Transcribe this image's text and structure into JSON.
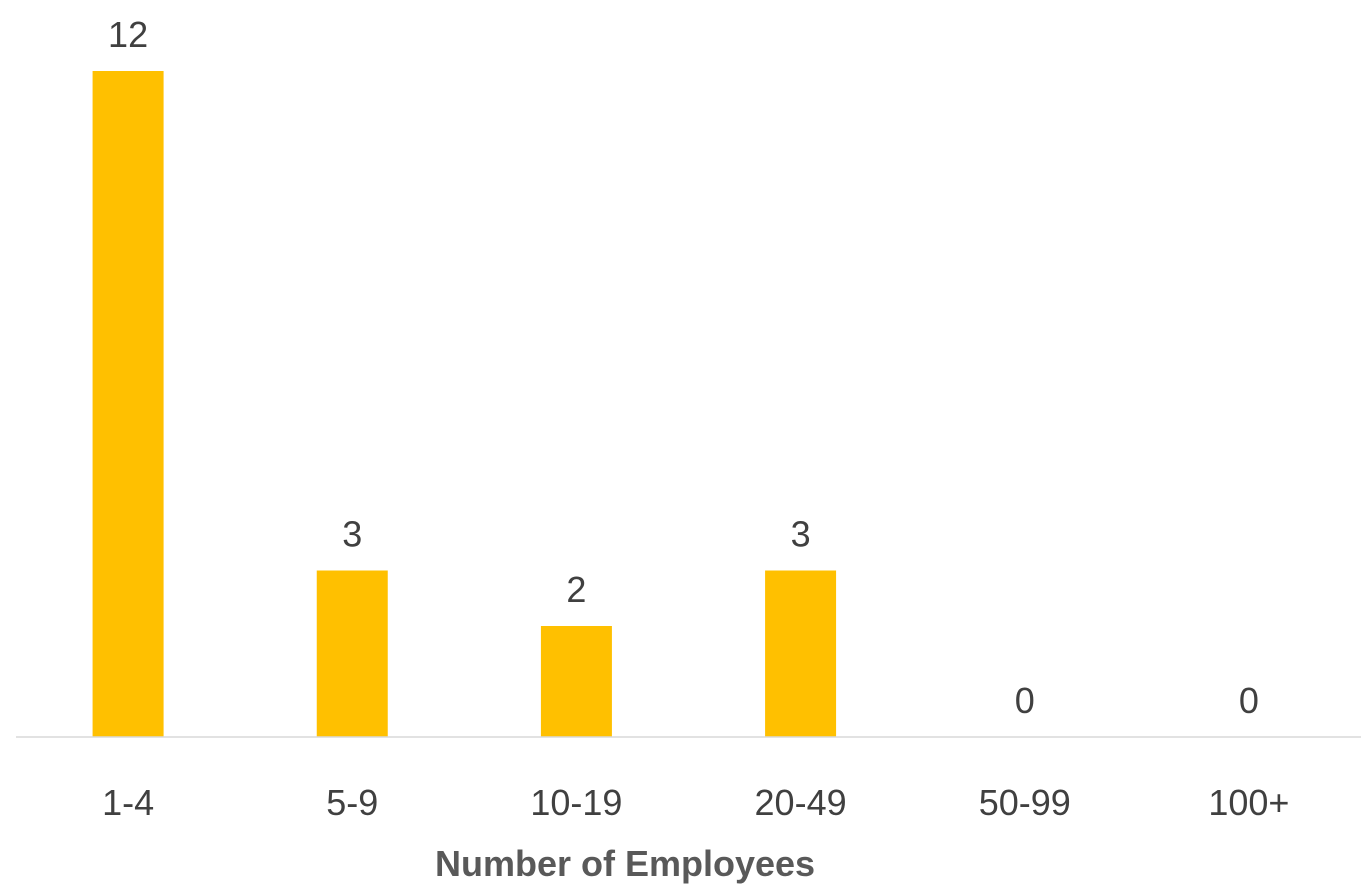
{
  "chart_data": {
    "type": "bar",
    "title": "",
    "xlabel": "Number of Employees",
    "ylabel": "",
    "categories": [
      "1-4",
      "5-9",
      "10-19",
      "20-49",
      "50-99",
      "100+"
    ],
    "values": [
      12,
      3,
      2,
      3,
      0,
      0
    ],
    "data_labels": [
      "12",
      "3",
      "2",
      "3",
      "0",
      "0"
    ],
    "ylim": [
      0,
      12
    ],
    "grid": false,
    "legend": "none",
    "colors": {
      "bar": "#ffc000",
      "axis": "#d9d9d9",
      "text": "#404040",
      "axis_title": "#595959"
    }
  }
}
